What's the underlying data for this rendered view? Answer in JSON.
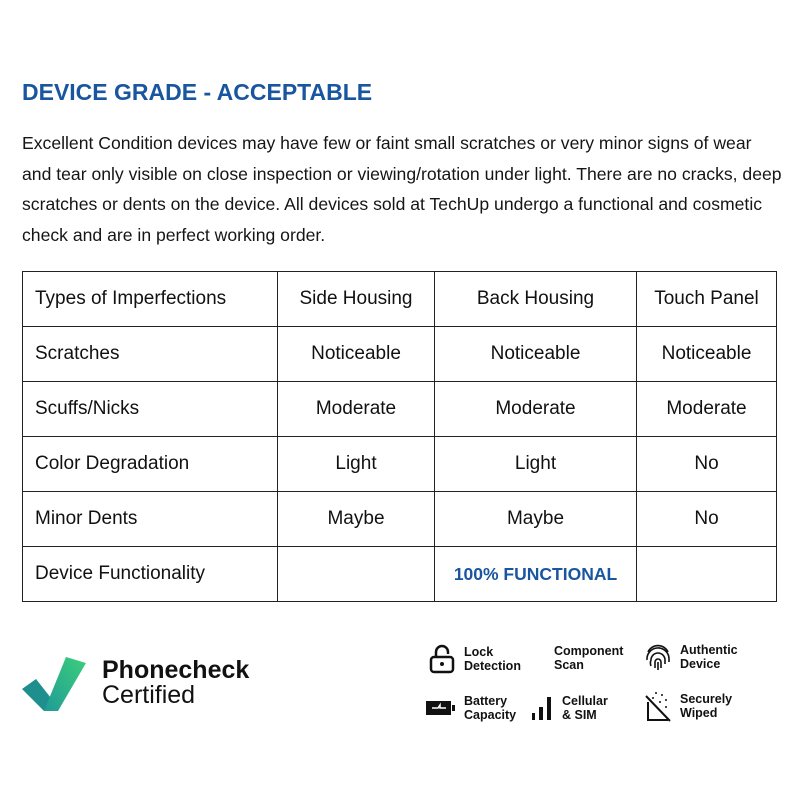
{
  "title": "DEVICE GRADE - ACCEPTABLE",
  "description": "Excellent Condition devices may have few or faint small scratches or very minor signs of wear and tear only visible on close inspection or viewing/rotation under light. There are no cracks, deep scratches or dents on the device. All devices sold at TechUp undergo a functional and cosmetic check and are in perfect working order.",
  "table": {
    "headers": [
      "Types of Imperfections",
      "Side Housing",
      "Back Housing",
      "Touch Panel"
    ],
    "rows": [
      [
        "Scratches",
        "Noticeable",
        "Noticeable",
        "Noticeable"
      ],
      [
        "Scuffs/Nicks",
        "Moderate",
        "Moderate",
        "Moderate"
      ],
      [
        "Color Degradation",
        "Light",
        "Light",
        "No"
      ],
      [
        "Minor Dents",
        "Maybe",
        "Maybe",
        "No"
      ]
    ],
    "functionality_label": "Device Functionality",
    "functionality_value": "100% FUNCTIONAL"
  },
  "logo": {
    "line1": "Phonecheck",
    "line2": "Certified"
  },
  "features": [
    {
      "icon": "lock-icon",
      "line1": "Lock",
      "line2": "Detection"
    },
    {
      "icon": "none",
      "line1": "Component",
      "line2": "Scan"
    },
    {
      "icon": "fingerprint-icon",
      "line1": "Authentic",
      "line2": "Device"
    },
    {
      "icon": "battery-icon",
      "line1": "Battery",
      "line2": "Capacity"
    },
    {
      "icon": "signal-icon",
      "line1": "Cellular",
      "line2": "& SIM"
    },
    {
      "icon": "wiped-icon",
      "line1": "Securely",
      "line2": "Wiped"
    }
  ],
  "colors": {
    "accent": "#1a56a0",
    "logo_green": "#3dcf7a",
    "logo_teal": "#1f9b96"
  }
}
